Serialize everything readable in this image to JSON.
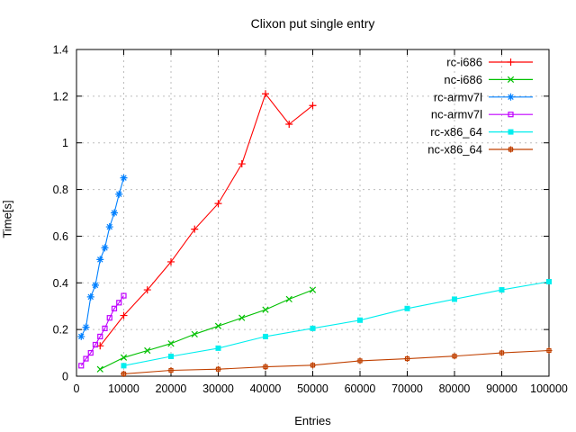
{
  "chart_data": {
    "type": "line",
    "title": "Clixon put single entry",
    "xlabel": "Entries",
    "ylabel": "Time[s]",
    "xlim": [
      0,
      100000
    ],
    "ylim": [
      0,
      1.4
    ],
    "xticks": [
      0,
      10000,
      20000,
      30000,
      40000,
      50000,
      60000,
      70000,
      80000,
      90000,
      100000
    ],
    "xtick_labels": [
      "0",
      "10000",
      "20000",
      "30000",
      "40000",
      "50000",
      "60000",
      "70000",
      "80000",
      "90000",
      "100000"
    ],
    "yticks": [
      0,
      0.2,
      0.4,
      0.6,
      0.8,
      1.0,
      1.2,
      1.4
    ],
    "ytick_labels": [
      "0",
      "0.2",
      "0.4",
      "0.6",
      "0.8",
      "1",
      "1.2",
      "1.4"
    ],
    "grid": true,
    "grid_color": "#bdbdbd",
    "axis_color": "#000000",
    "background": "#ffffff",
    "legend_position": "top-right-inside",
    "series": [
      {
        "name": "rc-i686",
        "color": "#ff0000",
        "marker": "plus",
        "x": [
          5000,
          10000,
          15000,
          20000,
          25000,
          30000,
          35000,
          40000,
          45000,
          50000
        ],
        "y": [
          0.13,
          0.26,
          0.37,
          0.49,
          0.63,
          0.74,
          0.91,
          1.21,
          1.08,
          1.16
        ]
      },
      {
        "name": "nc-i686",
        "color": "#00c000",
        "marker": "cross",
        "x": [
          5000,
          10000,
          15000,
          20000,
          25000,
          30000,
          35000,
          40000,
          45000,
          50000
        ],
        "y": [
          0.03,
          0.08,
          0.11,
          0.14,
          0.18,
          0.215,
          0.25,
          0.285,
          0.33,
          0.37
        ]
      },
      {
        "name": "rc-armv7l",
        "color": "#0080ff",
        "marker": "asterisk",
        "x": [
          1000,
          2000,
          3000,
          4000,
          5000,
          6000,
          7000,
          8000,
          9000,
          10000
        ],
        "y": [
          0.17,
          0.21,
          0.34,
          0.39,
          0.5,
          0.55,
          0.64,
          0.7,
          0.78,
          0.85
        ]
      },
      {
        "name": "nc-armv7l",
        "color": "#c000ff",
        "marker": "open-square",
        "x": [
          1000,
          2000,
          3000,
          4000,
          5000,
          6000,
          7000,
          8000,
          9000,
          10000
        ],
        "y": [
          0.045,
          0.075,
          0.1,
          0.135,
          0.17,
          0.205,
          0.25,
          0.29,
          0.315,
          0.345
        ]
      },
      {
        "name": "rc-x86_64",
        "color": "#00eeee",
        "marker": "filled-square",
        "x": [
          10000,
          20000,
          30000,
          40000,
          50000,
          60000,
          70000,
          80000,
          90000,
          100000
        ],
        "y": [
          0.045,
          0.085,
          0.12,
          0.17,
          0.205,
          0.24,
          0.29,
          0.33,
          0.37,
          0.405
        ]
      },
      {
        "name": "nc-x86_64",
        "color": "#c04000",
        "marker": "box-plus",
        "x": [
          10000,
          20000,
          30000,
          40000,
          50000,
          60000,
          70000,
          80000,
          90000,
          100000
        ],
        "y": [
          0.01,
          0.025,
          0.03,
          0.04,
          0.047,
          0.066,
          0.075,
          0.086,
          0.1,
          0.11
        ]
      }
    ]
  }
}
